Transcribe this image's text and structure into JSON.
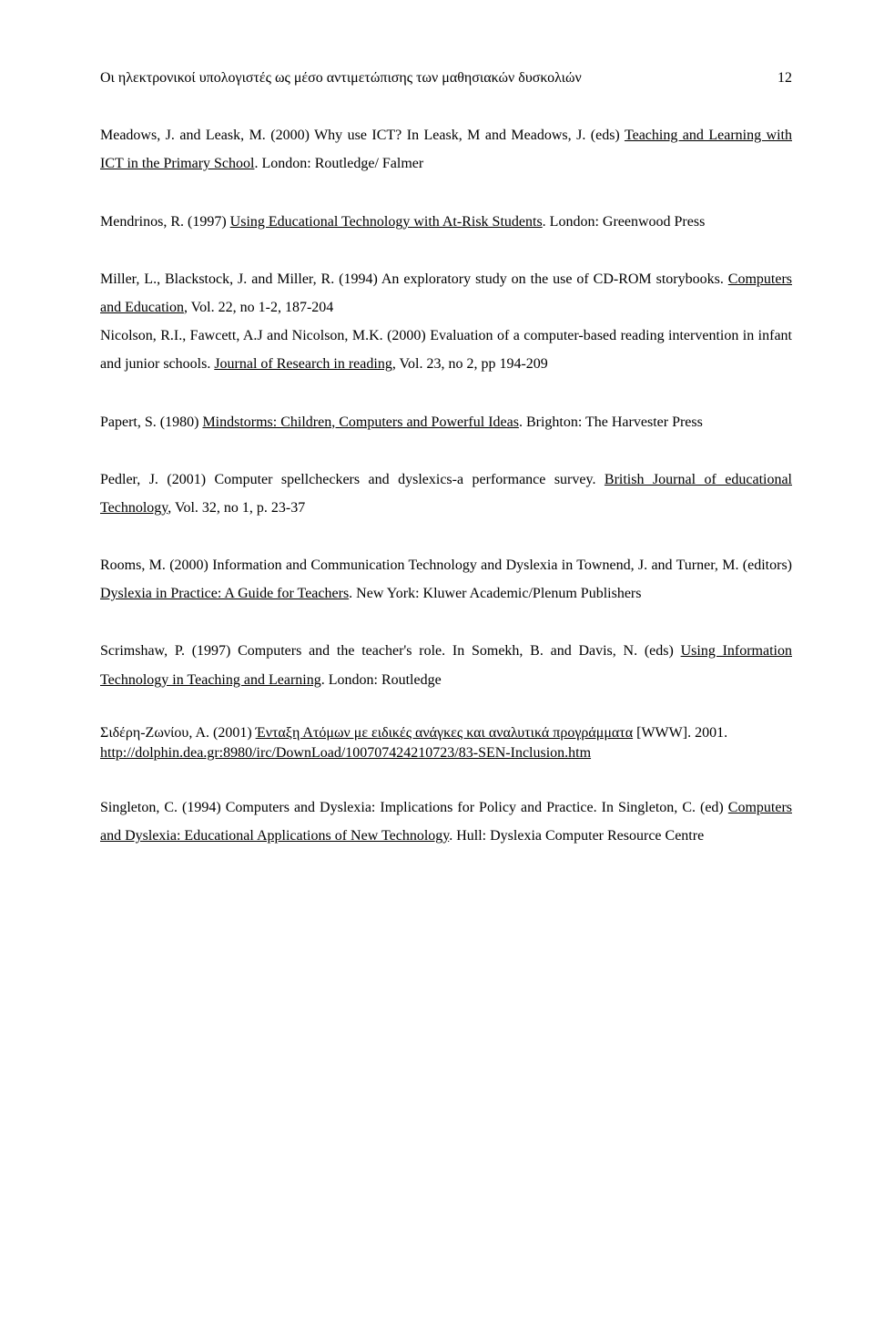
{
  "header": {
    "running": "Οι ηλεκτρονικοί υπολογιστές ως μέσο αντιμετώπισης των μαθησιακών δυσκολιών",
    "page": "12"
  },
  "refs": {
    "meadows": {
      "a": "Meadows, J. and Leask, M. (2000) Why use ICT? In Leask, M and Meadows, J. (eds) ",
      "u": "Teaching and Learning with ICT in the Primary School",
      "b": ". London: Routledge/ Falmer"
    },
    "mendrinos": {
      "a": "Mendrinos, R. (1997) ",
      "u": "Using Educational Technology with At-Risk Students",
      "b": ". London: Greenwood Press"
    },
    "miller": {
      "a": "Miller, L., Blackstock, J. and Miller, R. (1994) An exploratory study on the use of CD-ROM storybooks. ",
      "u": "Computers and Education",
      "b": ", Vol. 22, no 1-2, 187-204"
    },
    "nicolson": {
      "a": "Nicolson, R.I., Fawcett, A.J and Nicolson, M.K. (2000) Evaluation of a computer-based reading intervention in infant and junior schools. ",
      "u": "Journal of Research in reading",
      "b": ", Vol. 23, no 2, pp 194-209"
    },
    "papert": {
      "a": "Papert, S. (1980) ",
      "u": "Mindstorms: Children, Computers and Powerful Ideas",
      "b": ". Brighton: The Harvester Press"
    },
    "pedler": {
      "a": "Pedler, J. (2001) Computer spellcheckers and dyslexics-a performance survey. ",
      "u": "British Journal of educational Technology",
      "b": ", Vol. 32, no 1, p. 23-37"
    },
    "rooms": {
      "a": "Rooms, M. (2000) Information and Communication Technology and Dyslexia in Townend, J. and Turner, M. (editors) ",
      "u": "Dyslexia in Practice: A Guide for Teachers",
      "b": ". New York: Kluwer Academic/Plenum Publishers"
    },
    "scrimshaw": {
      "a": "Scrimshaw, P. (1997) Computers and the teacher's role. In Somekh, B. and Davis, N. (eds) ",
      "u": "Using Information Technology in Teaching and Learning",
      "b": ". London: Routledge"
    },
    "sideri": {
      "a": "Σιδέρη-Ζωνίου, Α. (2001) ",
      "u": "Ένταξη Ατόμων με ειδικές ανάγκες και αναλυτικά προγράμματα",
      "b": " [WWW]. 2001.",
      "url": "http://dolphin.dea.gr:8980/irc/DownLoad/100707424210723/83-SEN-Inclusion.htm"
    },
    "singleton": {
      "a": "Singleton, C. (1994) Computers and Dyslexia: Implications for Policy and Practice. In Singleton, C. (ed) ",
      "u": "Computers and Dyslexia: Educational Applications of New Technology",
      "b": ". Hull: Dyslexia Computer Resource Centre"
    }
  }
}
